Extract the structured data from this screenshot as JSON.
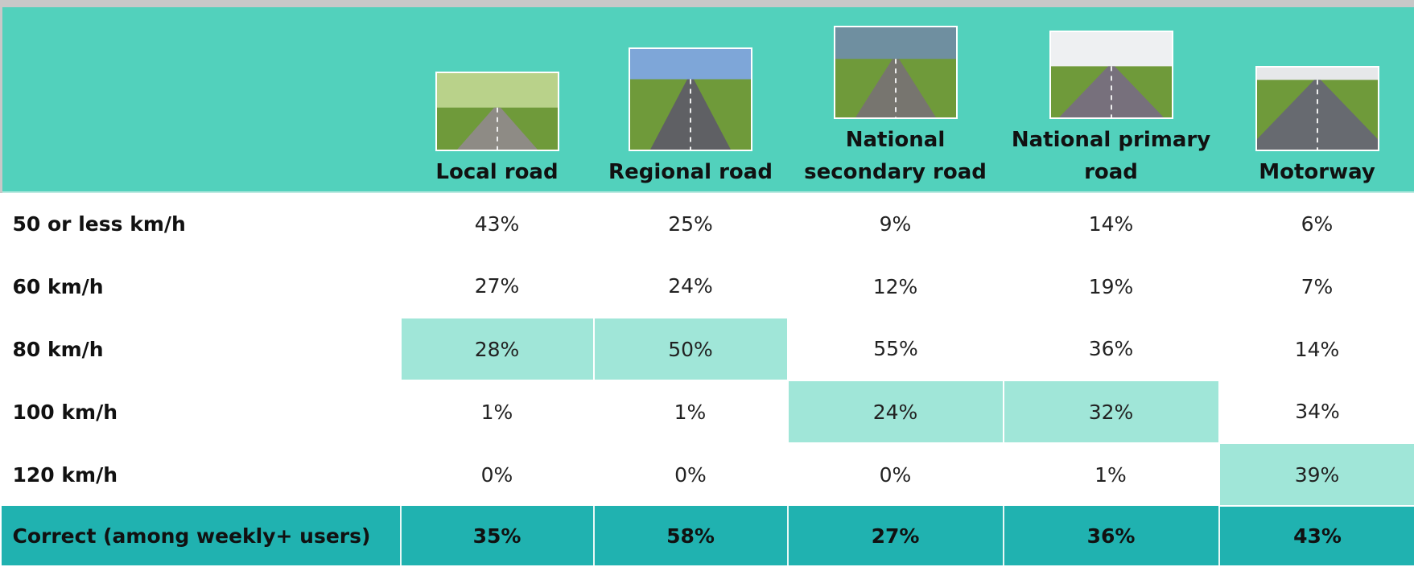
{
  "table": {
    "columns": [
      "Local road",
      "Regional road",
      "National secondary road",
      "National primary road",
      "Motorway"
    ],
    "rows": [
      {
        "label": "50 or less km/h",
        "cells": [
          "43%",
          "25%",
          "9%",
          "14%",
          "6%"
        ]
      },
      {
        "label": "60 km/h",
        "cells": [
          "27%",
          "24%",
          "12%",
          "19%",
          "7%"
        ]
      },
      {
        "label": "80 km/h",
        "cells": [
          "28%",
          "50%",
          "55%",
          "36%",
          "14%"
        ]
      },
      {
        "label": "100 km/h",
        "cells": [
          "1%",
          "1%",
          "24%",
          "32%",
          "34%"
        ]
      },
      {
        "label": "120 km/h",
        "cells": [
          "0%",
          "0%",
          "0%",
          "1%",
          "39%"
        ]
      }
    ],
    "footer": {
      "label": "Correct (among weekly+ users)",
      "cells": [
        "35%",
        "58%",
        "27%",
        "36%",
        "43%"
      ]
    }
  }
}
